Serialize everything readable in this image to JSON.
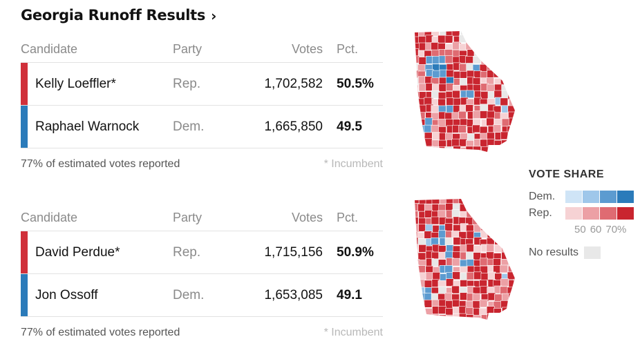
{
  "title": "Georgia Runoff Results",
  "title_chevron": "›",
  "headers": {
    "candidate": "Candidate",
    "party": "Party",
    "votes": "Votes",
    "pct": "Pct."
  },
  "colors": {
    "rep": "#d0303a",
    "dem": "#2b7bba",
    "no_results": "#e8e8e8",
    "dem_scale": [
      "#cfe4f6",
      "#9fc7ea",
      "#5c9bd0",
      "#2b7bba"
    ],
    "rep_scale": [
      "#f6d2d4",
      "#eca0a5",
      "#df6b72",
      "#c9252f"
    ]
  },
  "races": [
    {
      "candidates": [
        {
          "name": "Kelly Loeffler*",
          "party": "Rep.",
          "votes": "1,702,582",
          "pct": "50.5%",
          "color": "#d0303a"
        },
        {
          "name": "Raphael Warnock",
          "party": "Dem.",
          "votes": "1,665,850",
          "pct": "49.5",
          "color": "#2b7bba"
        }
      ],
      "reported": "77% of estimated votes reported",
      "incumbent_note": "* Incumbent"
    },
    {
      "candidates": [
        {
          "name": "David Perdue*",
          "party": "Rep.",
          "votes": "1,715,156",
          "pct": "50.9%",
          "color": "#d0303a"
        },
        {
          "name": "Jon Ossoff",
          "party": "Dem.",
          "votes": "1,653,085",
          "pct": "49.1",
          "color": "#2b7bba"
        }
      ],
      "reported": "77% of estimated votes reported",
      "incumbent_note": "* Incumbent"
    }
  ],
  "legend": {
    "title": "VOTE SHARE",
    "dem_label": "Dem.",
    "rep_label": "Rep.",
    "ticks": [
      "50",
      "60",
      "70%"
    ],
    "no_results_label": "No results"
  }
}
